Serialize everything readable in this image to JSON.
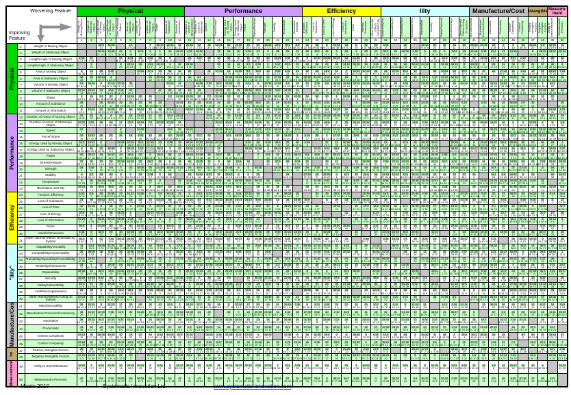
{
  "corner": {
    "worsening": "Worsening Feature",
    "improving": "Improving Feature"
  },
  "categories": [
    {
      "top_label": "Physical",
      "left_label": "Physical",
      "color": "#00d800",
      "start": 1,
      "end": 11
    },
    {
      "top_label": "Performance",
      "left_label": "Performance",
      "color": "#cc99ff",
      "start": 12,
      "end": 23
    },
    {
      "top_label": "Efficiency",
      "left_label": "Efficiency",
      "color": "#ffff00",
      "start": 24,
      "end": 31
    },
    {
      "top_label": "Ility",
      "left_label": "\"Ility\"",
      "color": "#ccffff",
      "start": 32,
      "end": 40
    },
    {
      "top_label": "Manufacture/Cost",
      "left_label": "Manufacture/Cos",
      "color": "#c0c0c0",
      "start": 41,
      "end": 46
    },
    {
      "top_label": "Intangible",
      "left_label": "Int",
      "color": "#c2a96f",
      "start": 47,
      "end": 48
    },
    {
      "top_label": "Measure-ment",
      "left_label": "Meas-urement",
      "color": "#ff99cc",
      "start": 49,
      "end": 50
    }
  ],
  "parameters": [
    "Weight of Moving Object",
    "Weight of Stationary Object",
    "Length/Angle of Moving Object",
    "Length/Angle of Stationary Object",
    "Area of Moving Object",
    "Area of Stationary Object",
    "Volume of Moving Object",
    "Volume of Stationary Object",
    "Shape",
    "Amount of Substance",
    "Amount of Information",
    "Duration of Action of Moving Object",
    "Duration of Action of Stationary Object",
    "Speed",
    "Force/Torque",
    "Energy Used by Moving Object",
    "Energy Used by Stationary Object",
    "Power",
    "Stress/Pressure",
    "Strength",
    "Stability",
    "Temperature",
    "Illumination Intensity",
    "Function Efficiency",
    "Loss of Substance",
    "Loss of Time",
    "Loss of Energy",
    "Loss of Information",
    "Noise",
    "Harmful Emissions",
    "Other Harmful Effects Generated by System",
    "Adaptability/Versatility",
    "Compatibility/Connectability",
    "Trainability/Operability/Controllability",
    "Reliability/Robustness",
    "Repairability",
    "Security",
    "Safety/Vulnerability",
    "Aesthetics/Appearance",
    "Other Harmful Effects Acting on System",
    "Manufacturability",
    "Manufacture Precision/Consistency",
    "Automation",
    "Productivity",
    "System Complexity",
    "Control Complexity",
    "Positive Intangible Factors",
    "Negative Intangible Factors",
    "Ability to Detect/Measure",
    "Measurement Precision"
  ],
  "matrix": {
    "grid_size": 50,
    "colors": {
      "row_white": "#ffffff",
      "row_green": "#ccffcc",
      "empty_gray": "#c4c4c4",
      "chip_green": "#a5e0a5"
    },
    "empty_cells": {
      "diagonal": true,
      "counterpart_pairs": [
        [
          1,
          2
        ],
        [
          3,
          4
        ],
        [
          5,
          6
        ],
        [
          7,
          8
        ],
        [
          12,
          13
        ],
        [
          16,
          17
        ]
      ],
      "stationary_vs_speed": {
        "stationary_params": [
          2,
          4,
          6,
          8,
          13,
          17
        ],
        "speed_param": 14
      },
      "scatter_modulus": 29
    },
    "cells_generator": {
      "seed": 2010,
      "principle_min": 1,
      "principle_max": 40,
      "max_numbers_per_line": 3
    }
  },
  "footer": {
    "left": "Matrix 2010",
    "center": "Systematic Innovation Ltd",
    "link": "www.systematic-innovation.com"
  }
}
